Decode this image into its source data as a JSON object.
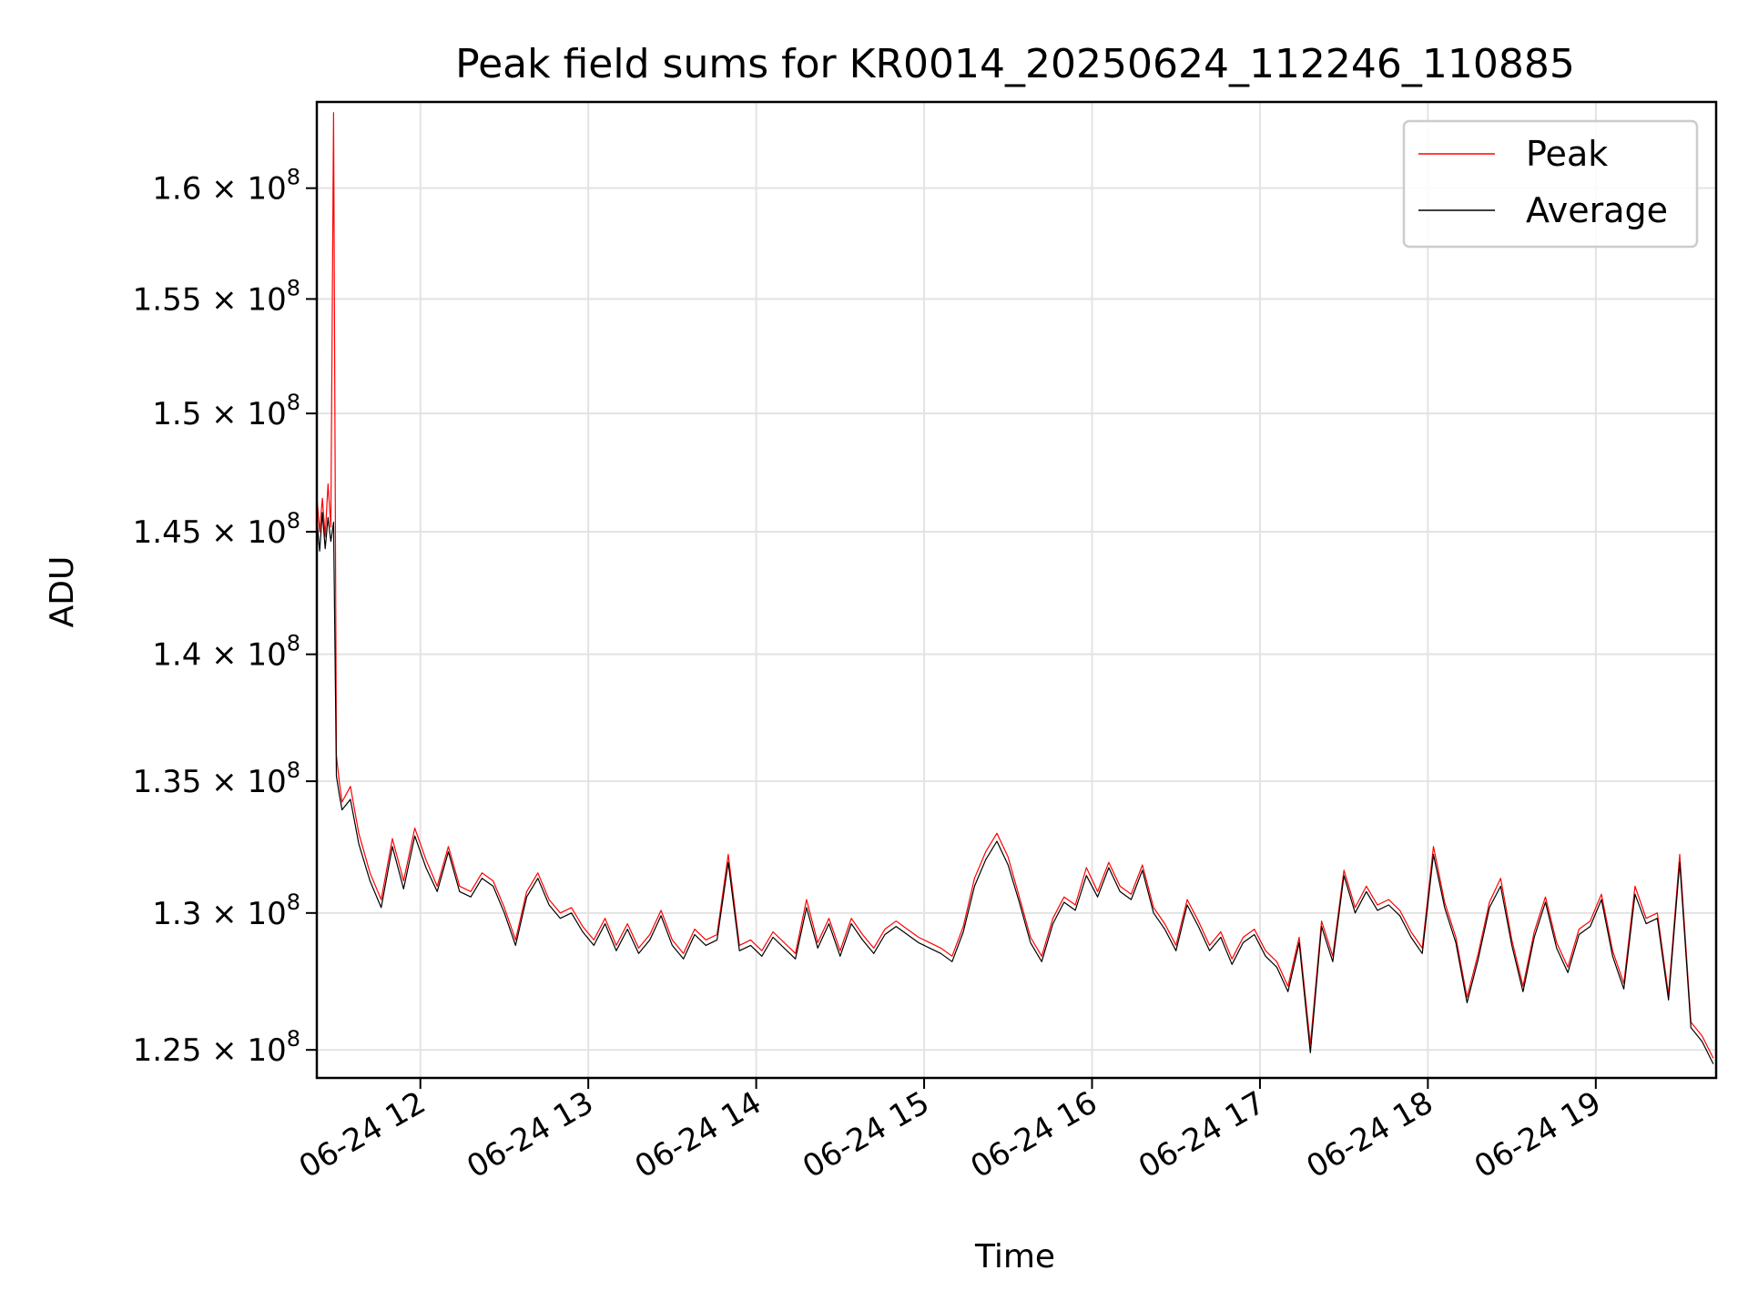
{
  "chart_data": {
    "type": "line",
    "title": "Peak field sums for KR0014_20250624_112246_110885",
    "xlabel": "Time",
    "ylabel": "ADU",
    "x_ticks": [
      "06-24 12",
      "06-24 13",
      "06-24 14",
      "06-24 15",
      "06-24 16",
      "06-24 17",
      "06-24 18",
      "06-24 19"
    ],
    "y_ticks": [
      {
        "value": 125000000,
        "mantissa": "1.25",
        "exponent": "8"
      },
      {
        "value": 130000000,
        "mantissa": "1.3",
        "exponent": "8"
      },
      {
        "value": 135000000,
        "mantissa": "1.35",
        "exponent": "8"
      },
      {
        "value": 140000000,
        "mantissa": "1.4",
        "exponent": "8"
      },
      {
        "value": 145000000,
        "mantissa": "1.45",
        "exponent": "8"
      },
      {
        "value": 150000000,
        "mantissa": "1.5",
        "exponent": "8"
      },
      {
        "value": 155000000,
        "mantissa": "1.55",
        "exponent": "8"
      },
      {
        "value": 160000000,
        "mantissa": "1.6",
        "exponent": "8"
      }
    ],
    "xlim": [
      "06-24 11:23",
      "06-24 19:43"
    ],
    "ylim": [
      124000000,
      164000000
    ],
    "y_scale": "log",
    "grid": true,
    "legend_position": "top-right",
    "series": [
      {
        "name": "Peak",
        "color": "#ff0000",
        "x": [
          "11:23",
          "11:24",
          "11:25",
          "11:26",
          "11:27",
          "11:28",
          "11:29",
          "11:30",
          "11:31",
          "11:32",
          "11:35",
          "11:38",
          "11:42",
          "11:46",
          "11:50",
          "11:54",
          "11:58",
          "12:02",
          "12:06",
          "12:10",
          "12:14",
          "12:18",
          "12:22",
          "12:26",
          "12:30",
          "12:34",
          "12:38",
          "12:42",
          "12:46",
          "12:50",
          "12:54",
          "12:58",
          "13:02",
          "13:06",
          "13:10",
          "13:14",
          "13:18",
          "13:22",
          "13:26",
          "13:30",
          "13:34",
          "13:38",
          "13:42",
          "13:46",
          "13:50",
          "13:54",
          "13:58",
          "14:02",
          "14:06",
          "14:10",
          "14:14",
          "14:18",
          "14:22",
          "14:26",
          "14:30",
          "14:34",
          "14:38",
          "14:42",
          "14:46",
          "14:50",
          "14:54",
          "14:58",
          "15:02",
          "15:06",
          "15:10",
          "15:14",
          "15:18",
          "15:22",
          "15:26",
          "15:30",
          "15:34",
          "15:38",
          "15:42",
          "15:46",
          "15:50",
          "15:54",
          "15:58",
          "16:02",
          "16:06",
          "16:10",
          "16:14",
          "16:18",
          "16:22",
          "16:26",
          "16:30",
          "16:34",
          "16:38",
          "16:42",
          "16:46",
          "16:50",
          "16:54",
          "16:58",
          "17:02",
          "17:06",
          "17:10",
          "17:14",
          "17:18",
          "17:22",
          "17:26",
          "17:30",
          "17:34",
          "17:38",
          "17:42",
          "17:46",
          "17:50",
          "17:54",
          "17:58",
          "18:02",
          "18:06",
          "18:10",
          "18:14",
          "18:18",
          "18:22",
          "18:26",
          "18:30",
          "18:34",
          "18:38",
          "18:42",
          "18:46",
          "18:50",
          "18:54",
          "18:58",
          "19:02",
          "19:06",
          "19:10",
          "19:14",
          "19:18",
          "19:22",
          "19:26",
          "19:30",
          "19:34",
          "19:38",
          "19:42"
        ],
        "y": [
          146500000,
          145000000,
          146400000,
          144800000,
          147000000,
          145200000,
          163500000,
          136000000,
          135000000,
          134200000,
          134800000,
          133000000,
          131500000,
          130500000,
          132800000,
          131200000,
          133200000,
          132000000,
          131000000,
          132500000,
          131000000,
          130800000,
          131500000,
          131200000,
          130200000,
          129000000,
          130800000,
          131500000,
          130500000,
          130000000,
          130200000,
          129500000,
          129000000,
          129800000,
          128800000,
          129600000,
          128700000,
          129200000,
          130100000,
          129000000,
          128500000,
          129400000,
          129000000,
          129200000,
          132200000,
          128800000,
          129000000,
          128600000,
          129300000,
          128900000,
          128500000,
          130500000,
          128900000,
          129800000,
          128600000,
          129800000,
          129200000,
          128700000,
          129400000,
          129700000,
          129400000,
          129100000,
          128900000,
          128700000,
          128400000,
          129500000,
          131300000,
          132300000,
          133000000,
          132100000,
          130600000,
          129100000,
          128400000,
          129800000,
          130600000,
          130300000,
          131700000,
          130800000,
          131900000,
          131000000,
          130700000,
          131800000,
          130200000,
          129600000,
          128800000,
          130500000,
          129700000,
          128800000,
          129300000,
          128300000,
          129100000,
          129400000,
          128600000,
          128200000,
          127300000,
          129100000,
          125200000,
          129700000,
          128400000,
          131600000,
          130200000,
          131000000,
          130300000,
          130500000,
          130100000,
          129300000,
          128700000,
          132500000,
          130400000,
          129100000,
          126900000,
          128500000,
          130400000,
          131300000,
          129000000,
          127300000,
          129300000,
          130600000,
          128900000,
          128000000,
          129400000,
          129700000,
          130700000,
          128600000,
          127400000,
          131000000,
          129800000,
          130000000,
          127000000,
          132200000,
          126000000,
          125500000,
          124700000
        ],
        "line_width": 1.2
      },
      {
        "name": "Average",
        "color": "#000000",
        "x": [
          "11:23",
          "11:24",
          "11:25",
          "11:26",
          "11:27",
          "11:28",
          "11:29",
          "11:30",
          "11:31",
          "11:32",
          "11:35",
          "11:38",
          "11:42",
          "11:46",
          "11:50",
          "11:54",
          "11:58",
          "12:02",
          "12:06",
          "12:10",
          "12:14",
          "12:18",
          "12:22",
          "12:26",
          "12:30",
          "12:34",
          "12:38",
          "12:42",
          "12:46",
          "12:50",
          "12:54",
          "12:58",
          "13:02",
          "13:06",
          "13:10",
          "13:14",
          "13:18",
          "13:22",
          "13:26",
          "13:30",
          "13:34",
          "13:38",
          "13:42",
          "13:46",
          "13:50",
          "13:54",
          "13:58",
          "14:02",
          "14:06",
          "14:10",
          "14:14",
          "14:18",
          "14:22",
          "14:26",
          "14:30",
          "14:34",
          "14:38",
          "14:42",
          "14:46",
          "14:50",
          "14:54",
          "14:58",
          "15:02",
          "15:06",
          "15:10",
          "15:14",
          "15:18",
          "15:22",
          "15:26",
          "15:30",
          "15:34",
          "15:38",
          "15:42",
          "15:46",
          "15:50",
          "15:54",
          "15:58",
          "16:02",
          "16:06",
          "16:10",
          "16:14",
          "16:18",
          "16:22",
          "16:26",
          "16:30",
          "16:34",
          "16:38",
          "16:42",
          "16:46",
          "16:50",
          "16:54",
          "16:58",
          "17:02",
          "17:06",
          "17:10",
          "17:14",
          "17:18",
          "17:22",
          "17:26",
          "17:30",
          "17:34",
          "17:38",
          "17:42",
          "17:46",
          "17:50",
          "17:54",
          "17:58",
          "18:02",
          "18:06",
          "18:10",
          "18:14",
          "18:18",
          "18:22",
          "18:26",
          "18:30",
          "18:34",
          "18:38",
          "18:42",
          "18:46",
          "18:50",
          "18:54",
          "18:58",
          "19:02",
          "19:06",
          "19:10",
          "19:14",
          "19:18",
          "19:22",
          "19:26",
          "19:30",
          "19:34",
          "19:38",
          "19:42"
        ],
        "y": [
          145500000,
          144200000,
          145800000,
          144300000,
          145600000,
          144600000,
          145400000,
          135200000,
          134500000,
          133900000,
          134300000,
          132600000,
          131200000,
          130200000,
          132500000,
          130900000,
          132900000,
          131700000,
          130800000,
          132300000,
          130800000,
          130600000,
          131300000,
          131000000,
          130000000,
          128800000,
          130600000,
          131300000,
          130300000,
          129800000,
          130000000,
          129300000,
          128800000,
          129600000,
          128600000,
          129400000,
          128500000,
          129000000,
          129900000,
          128800000,
          128300000,
          129200000,
          128800000,
          129000000,
          131900000,
          128600000,
          128800000,
          128400000,
          129100000,
          128700000,
          128300000,
          130200000,
          128700000,
          129600000,
          128400000,
          129600000,
          129000000,
          128500000,
          129200000,
          129500000,
          129200000,
          128900000,
          128700000,
          128500000,
          128200000,
          129300000,
          131000000,
          132000000,
          132700000,
          131800000,
          130400000,
          128900000,
          128200000,
          129600000,
          130400000,
          130100000,
          131400000,
          130600000,
          131700000,
          130800000,
          130500000,
          131600000,
          130000000,
          129400000,
          128600000,
          130300000,
          129500000,
          128600000,
          129100000,
          128100000,
          128900000,
          129200000,
          128400000,
          128000000,
          127100000,
          128900000,
          124900000,
          129500000,
          128200000,
          131400000,
          130000000,
          130800000,
          130100000,
          130300000,
          129900000,
          129100000,
          128500000,
          132200000,
          130200000,
          128900000,
          126700000,
          128300000,
          130200000,
          131000000,
          128800000,
          127100000,
          129100000,
          130400000,
          128700000,
          127800000,
          129200000,
          129500000,
          130500000,
          128400000,
          127200000,
          130700000,
          129600000,
          129800000,
          126800000,
          131900000,
          125800000,
          125300000,
          124500000
        ],
        "line_width": 1.2
      }
    ]
  }
}
